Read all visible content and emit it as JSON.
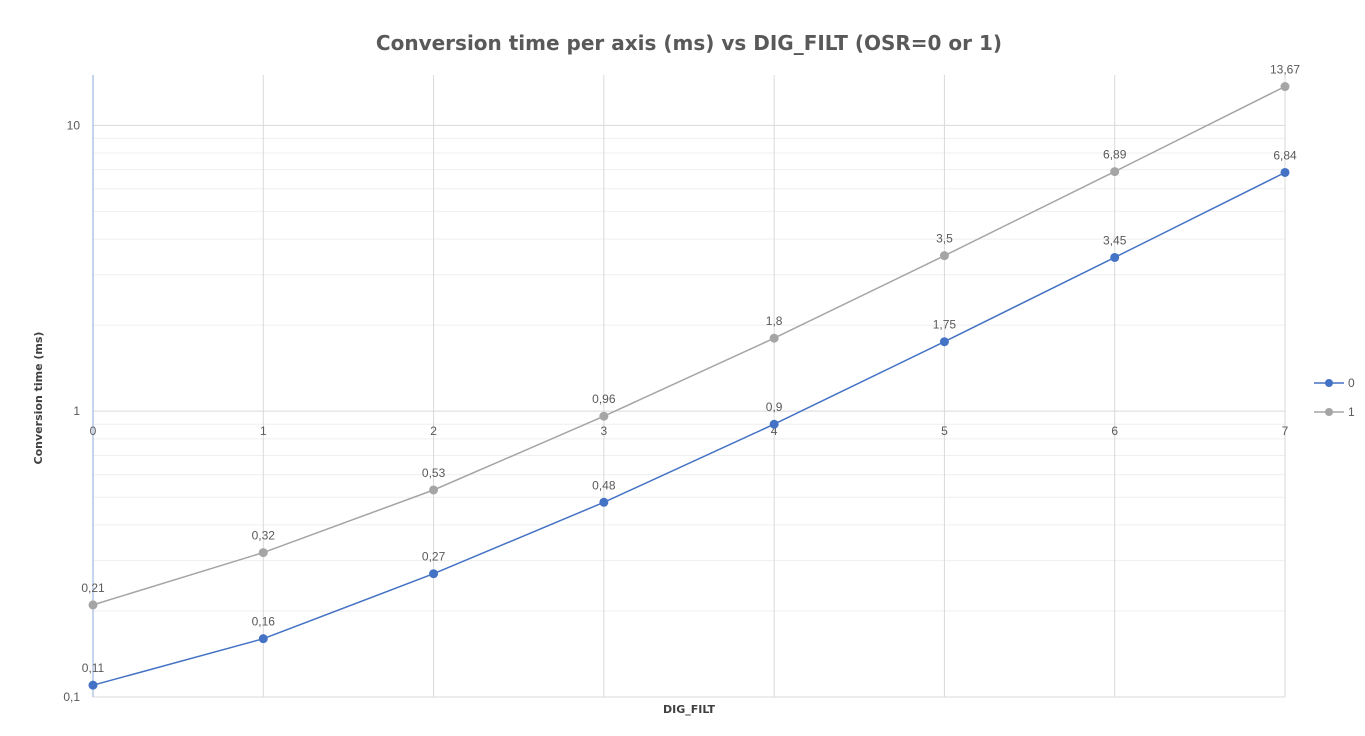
{
  "chart_data": {
    "type": "line",
    "title": "Conversion time per axis (ms) vs DIG_FILT (OSR=0 or 1)",
    "xlabel": "DIG_FILT",
    "ylabel": "Conversion time (ms)",
    "x": [
      0,
      1,
      2,
      3,
      4,
      5,
      6,
      7
    ],
    "x_tick_labels": [
      "0",
      "1",
      "2",
      "3",
      "4",
      "5",
      "6",
      "7"
    ],
    "y_scale": "log",
    "ylim": [
      0.1,
      15
    ],
    "y_tick_labels": [
      "0,1",
      "1",
      "10"
    ],
    "y_ticks": [
      0.1,
      1,
      10
    ],
    "grid": true,
    "legend_position": "right",
    "series": [
      {
        "name": "0",
        "color": "#4472C4",
        "values": [
          0.11,
          0.16,
          0.27,
          0.48,
          0.9,
          1.75,
          3.45,
          6.84
        ],
        "labels": [
          "0,11",
          "0,16",
          "0,27",
          "0,48",
          "0,9",
          "1,75",
          "3,45",
          "6,84"
        ]
      },
      {
        "name": "1",
        "color": "#A5A5A5",
        "values": [
          0.21,
          0.32,
          0.53,
          0.96,
          1.8,
          3.5,
          6.89,
          13.67
        ],
        "labels": [
          "0,21",
          "0,32",
          "0,53",
          "0,96",
          "1,8",
          "3,5",
          "6,89",
          "13,67"
        ]
      }
    ]
  }
}
